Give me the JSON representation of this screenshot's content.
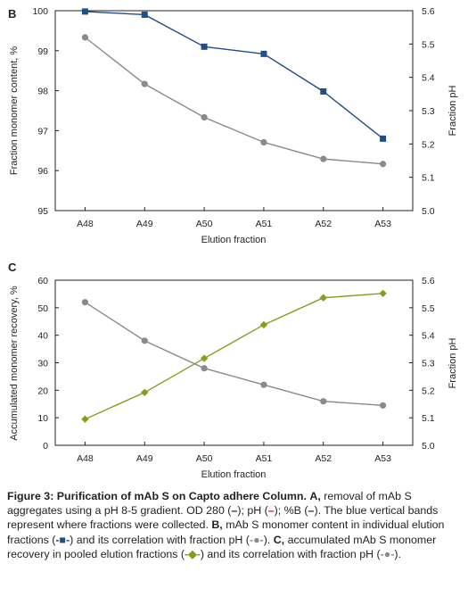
{
  "chart_data": [
    {
      "panel": "B",
      "type": "line",
      "categories": [
        "A48",
        "A49",
        "A50",
        "A51",
        "A52",
        "A53"
      ],
      "xlabel": "Elution fraction",
      "ylabel": "Fraction monomer content, %",
      "y2label": "Fraction pH",
      "ylim": [
        95,
        100
      ],
      "yticks": [
        "95",
        "96",
        "97",
        "98",
        "99",
        "100"
      ],
      "y2lim": [
        5.0,
        5.6
      ],
      "y2ticks": [
        "5.0",
        "5.1",
        "5.2",
        "5.3",
        "5.4",
        "5.5",
        "5.6"
      ],
      "grid": false,
      "legend": "none",
      "series": [
        {
          "axis": "left",
          "marker": "square",
          "color": "#1f4e8c",
          "values": [
            99.98,
            99.9,
            99.1,
            98.92,
            97.98,
            96.8
          ]
        },
        {
          "axis": "right",
          "marker": "circle",
          "color": "#8a8a8a",
          "values": [
            5.52,
            5.38,
            5.28,
            5.205,
            5.155,
            5.14
          ]
        }
      ]
    },
    {
      "panel": "C",
      "type": "line",
      "categories": [
        "A48",
        "A49",
        "A50",
        "A51",
        "A52",
        "A53"
      ],
      "xlabel": "Elution fraction",
      "ylabel": "Accumulated monomer recovery, %",
      "y2label": "Fraction pH",
      "ylim": [
        0,
        60
      ],
      "yticks": [
        "0",
        "10",
        "20",
        "30",
        "40",
        "50",
        "60"
      ],
      "y2lim": [
        5.0,
        5.6
      ],
      "y2ticks": [
        "5.0",
        "5.1",
        "5.2",
        "5.3",
        "5.4",
        "5.5",
        "5.6"
      ],
      "grid": false,
      "legend": "none",
      "series": [
        {
          "axis": "left",
          "marker": "diamond",
          "color": "#8c9a1e",
          "values": [
            9.5,
            19.2,
            31.6,
            43.8,
            53.6,
            55.2
          ]
        },
        {
          "axis": "right",
          "marker": "circle",
          "color": "#8a8a8a",
          "values": [
            5.52,
            5.38,
            5.28,
            5.22,
            5.16,
            5.145
          ]
        }
      ]
    }
  ],
  "caption": {
    "title": "Figure 3: Purification of mAb S on Capto adhere Column.",
    "a_label": "A,",
    "a_text": "removal of mAb S aggregates using a pH 8-5 gradient. OD 280 (",
    "a_sep1": "); pH (",
    "a_sep2": "); %B (",
    "a_end": "). The blue vertical bands represent where fractions were collected.",
    "b_label": "B,",
    "b_text": "mAb S monomer content in individual elution fractions (",
    "b_mid": ") and its correlation with fraction pH (",
    "b_end": ").",
    "c_label": "C,",
    "c_text": "accumulated mAb S monomer recovery in pooled elution fractions (",
    "c_mid": ") and its correlation with fraction pH (",
    "c_end": ").",
    "dash_glyph": "–",
    "square_glyph": "-■-",
    "circle_glyph": "-●-",
    "diamond_glyph": "-◆-"
  }
}
